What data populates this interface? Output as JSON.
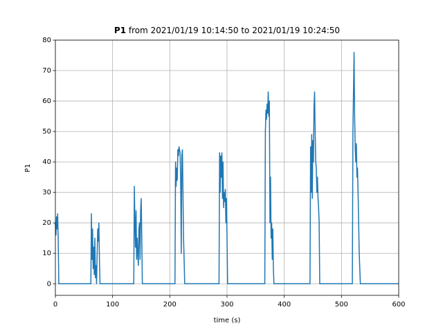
{
  "chart_data": {
    "type": "line",
    "title": {
      "variable": "P1",
      "text": "from 2021/01/19 10:14:50 to 2021/01/19 10:24:50"
    },
    "x_label": "time (s)",
    "y_label": "P1",
    "series": [
      {
        "name": "P1",
        "color": "#1f77b4",
        "x": [
          0,
          1,
          2,
          3,
          4,
          5,
          6,
          62,
          63,
          64,
          65,
          66,
          67,
          68,
          69,
          70,
          71,
          72,
          73,
          74,
          75,
          76,
          77,
          78,
          137,
          138,
          139,
          140,
          141,
          142,
          143,
          144,
          145,
          146,
          147,
          148,
          149,
          150,
          151,
          152,
          209,
          210,
          211,
          212,
          213,
          214,
          215,
          216,
          217,
          218,
          219,
          220,
          221,
          222,
          223,
          224,
          225,
          226,
          286,
          287,
          288,
          289,
          290,
          291,
          292,
          293,
          294,
          295,
          296,
          297,
          298,
          299,
          300,
          301,
          366,
          367,
          368,
          369,
          370,
          371,
          372,
          373,
          374,
          375,
          376,
          377,
          378,
          379,
          380,
          381,
          382,
          445,
          446,
          447,
          448,
          449,
          450,
          451,
          452,
          453,
          454,
          455,
          456,
          457,
          458,
          459,
          460,
          461,
          462,
          519,
          520,
          521,
          522,
          523,
          524,
          525,
          526,
          527,
          528,
          529,
          530,
          531,
          532,
          533,
          600
        ],
        "values": [
          20,
          16,
          22,
          18,
          23,
          14,
          0,
          0,
          23,
          8,
          18,
          5,
          12,
          3,
          15,
          2,
          6,
          0,
          10,
          18,
          14,
          20,
          8,
          0,
          0,
          32,
          20,
          12,
          24,
          8,
          15,
          10,
          6,
          18,
          20,
          8,
          24,
          28,
          15,
          0,
          0,
          40,
          32,
          38,
          34,
          44,
          42,
          45,
          44,
          43,
          33,
          10,
          42,
          44,
          30,
          15,
          8,
          0,
          0,
          43,
          30,
          42,
          35,
          43,
          28,
          40,
          25,
          30,
          27,
          31,
          20,
          28,
          15,
          0,
          0,
          50,
          57,
          54,
          59,
          56,
          63,
          55,
          60,
          20,
          35,
          15,
          20,
          8,
          18,
          5,
          0,
          0,
          45,
          30,
          49,
          28,
          47,
          40,
          58,
          63,
          50,
          40,
          38,
          30,
          35,
          28,
          25,
          20,
          0,
          0,
          50,
          63,
          76,
          55,
          45,
          40,
          46,
          35,
          38,
          30,
          20,
          10,
          5,
          0,
          0
        ]
      }
    ],
    "xlim": [
      0,
      600
    ],
    "xticks": [
      0,
      100,
      200,
      300,
      400,
      500,
      600
    ],
    "ylim": [
      -3.8,
      80
    ],
    "yticks": [
      0,
      10,
      20,
      30,
      40,
      50,
      60,
      70,
      80
    ],
    "grid": true
  }
}
